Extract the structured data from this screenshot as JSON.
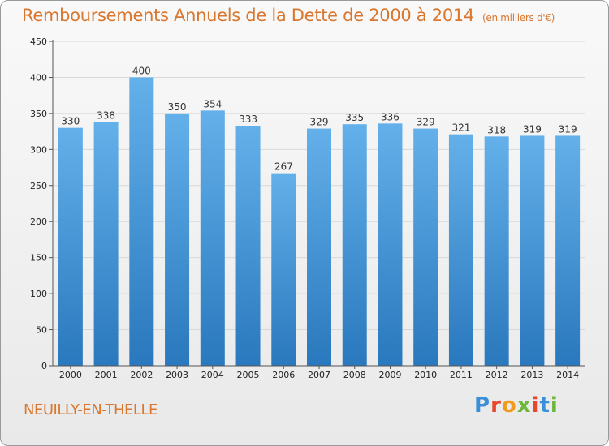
{
  "header": {
    "title": "Remboursements Annuels de la Dette de 2000 à 2014",
    "unit": "(en milliers d'€)"
  },
  "footer": {
    "city": "NEUILLY-EN-THELLE",
    "logo": "Proxiti"
  },
  "colors": {
    "title": "#d9772f",
    "bar_top": "#63b0ea",
    "bar_bottom": "#2a78bd"
  },
  "chart_data": {
    "type": "bar",
    "title": "Remboursements Annuels de la Dette de 2000 à 2014",
    "ylabel": "(en milliers d'€)",
    "xlabel": "",
    "categories": [
      "2000",
      "2001",
      "2002",
      "2003",
      "2004",
      "2005",
      "2006",
      "2007",
      "2008",
      "2009",
      "2010",
      "2011",
      "2012",
      "2013",
      "2014"
    ],
    "values": [
      330,
      338,
      400,
      350,
      354,
      333,
      267,
      329,
      335,
      336,
      329,
      321,
      318,
      319,
      319
    ],
    "ylim": [
      0,
      450
    ],
    "yticks": [
      0,
      50,
      100,
      150,
      200,
      250,
      300,
      350,
      400,
      450
    ],
    "grid": true,
    "legend": "none"
  }
}
